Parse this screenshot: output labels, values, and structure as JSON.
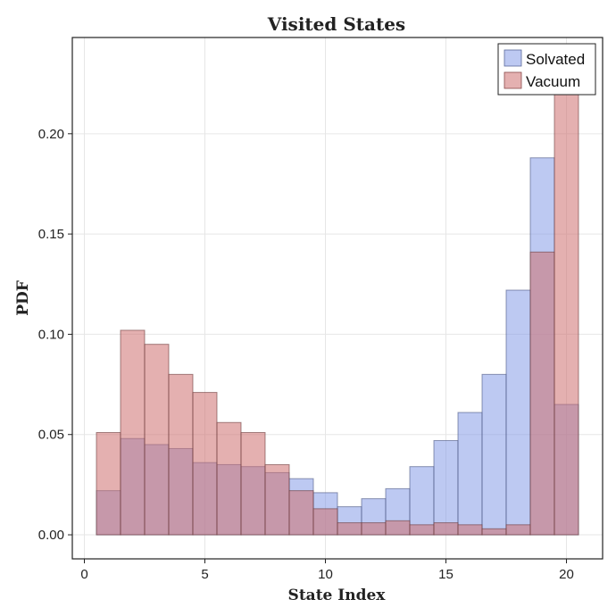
{
  "chart_data": {
    "type": "bar",
    "title": "Visited States",
    "xlabel": "State Index",
    "ylabel": "PDF",
    "x": [
      1,
      2,
      3,
      4,
      5,
      6,
      7,
      8,
      9,
      10,
      11,
      12,
      13,
      14,
      15,
      16,
      17,
      18,
      19,
      20
    ],
    "xlim": [
      -0.5,
      21.5
    ],
    "ylim": [
      -0.012,
      0.248
    ],
    "xticks": [
      0,
      5,
      10,
      15,
      20
    ],
    "xtick_labels": [
      "0",
      "5",
      "10",
      "15",
      "20"
    ],
    "yticks": [
      0.0,
      0.05,
      0.1,
      0.15,
      0.2
    ],
    "ytick_labels": [
      "0.00",
      "0.05",
      "0.10",
      "0.15",
      "0.20"
    ],
    "grid": true,
    "legend_position": "top-right",
    "series": [
      {
        "name": "Solvated",
        "color": "#7c93e6",
        "values": [
          0.022,
          0.048,
          0.045,
          0.043,
          0.036,
          0.035,
          0.034,
          0.031,
          0.028,
          0.021,
          0.014,
          0.018,
          0.023,
          0.034,
          0.047,
          0.061,
          0.08,
          0.122,
          0.188,
          0.065
        ]
      },
      {
        "name": "Vacuum",
        "color": "#cd6f6f",
        "values": [
          0.051,
          0.102,
          0.095,
          0.08,
          0.071,
          0.056,
          0.051,
          0.035,
          0.022,
          0.013,
          0.006,
          0.006,
          0.007,
          0.005,
          0.006,
          0.005,
          0.003,
          0.005,
          0.141,
          0.23
        ]
      }
    ]
  }
}
